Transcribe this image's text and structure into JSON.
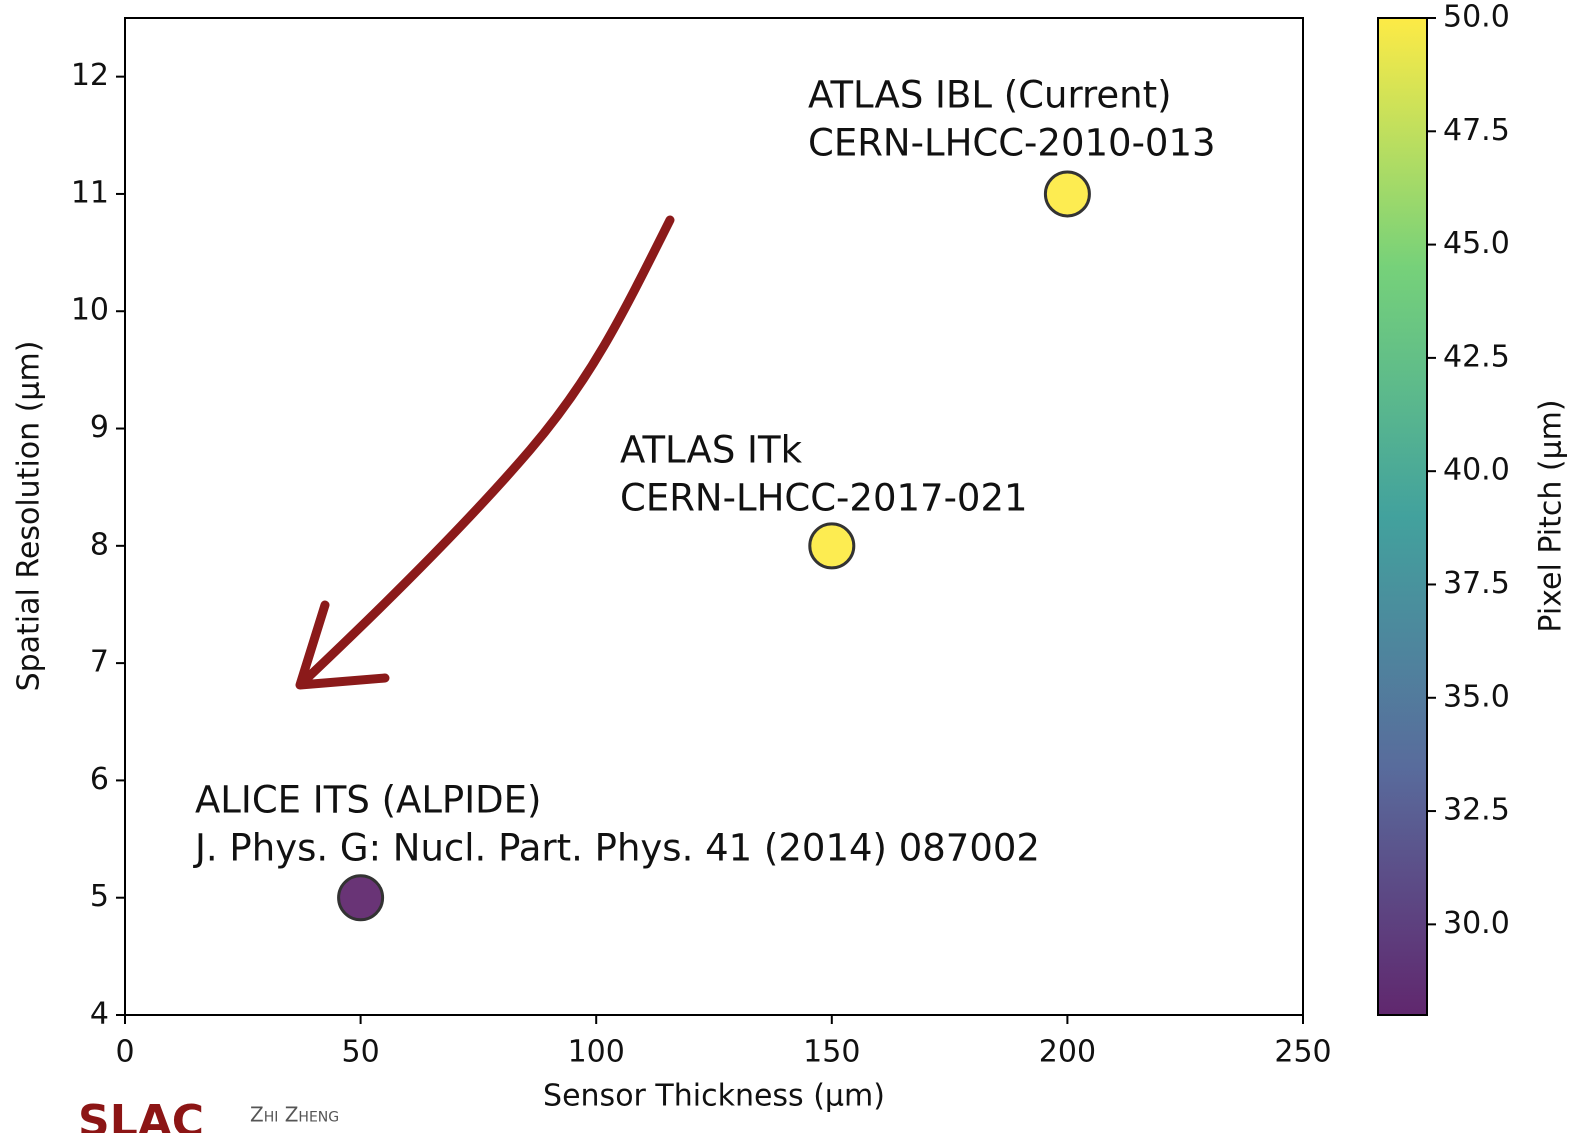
{
  "chart_data": {
    "type": "scatter",
    "xlabel": "Sensor Thickness (µm)",
    "ylabel": "Spatial Resolution (µm)",
    "colorbar_label": "Pixel Pitch (µm)",
    "x": [
      50,
      150,
      200
    ],
    "values": [
      5,
      8,
      11
    ],
    "color_values": [
      28,
      50,
      50
    ],
    "colormap": "viridis",
    "clim": [
      28,
      50
    ],
    "xlim": [
      0,
      250
    ],
    "xticks": [
      0,
      50,
      100,
      150,
      200,
      250
    ],
    "ylim": [
      4,
      12.5
    ],
    "yticks": [
      4,
      5,
      6,
      7,
      8,
      9,
      10,
      11,
      12
    ],
    "cticks": [
      {
        "value": 30,
        "label": "30.0"
      },
      32.5,
      {
        "value": 35,
        "label": "35.0"
      },
      37.5,
      {
        "value": 40,
        "label": "40.0"
      },
      42.5,
      {
        "value": 45,
        "label": "45.0"
      },
      47.5,
      {
        "value": 50,
        "label": "50.0"
      }
    ],
    "annotations": [
      [
        "ALICE ITS (ALPIDE)",
        "J. Phys. G: Nucl. Part. Phys. 41 (2014) 087002"
      ],
      [
        "ATLAS ITk",
        "CERN-LHCC-2017-021"
      ],
      [
        "ATLAS IBL (Current)",
        "CERN-LHCC-2010-013"
      ]
    ]
  },
  "footer": {
    "logo": "SLAC",
    "author": "Zhi Zheng"
  }
}
